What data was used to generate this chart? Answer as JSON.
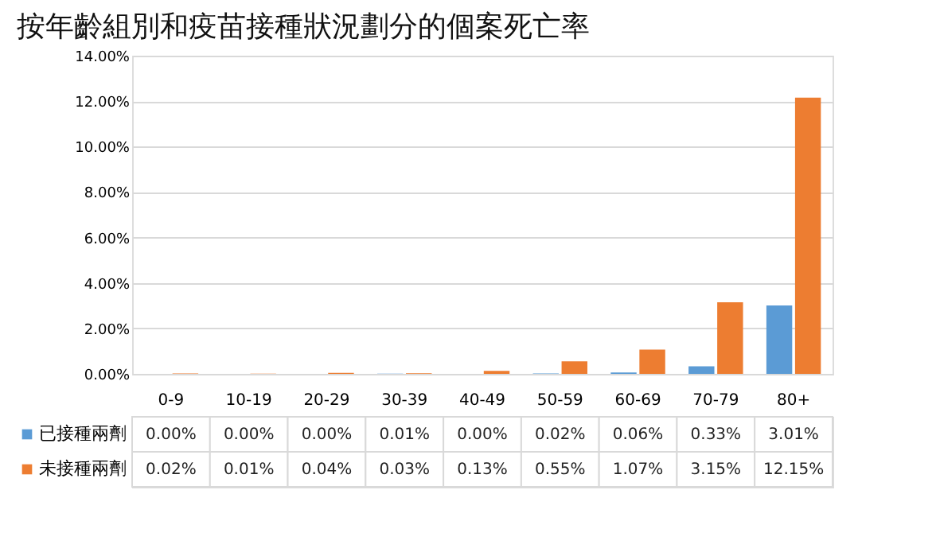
{
  "chart_data": {
    "type": "bar",
    "title": "按年齡組別和疫苗接種狀況劃分的個案死亡率",
    "categories": [
      "0-9",
      "10-19",
      "20-29",
      "30-39",
      "40-49",
      "50-59",
      "60-69",
      "70-79",
      "80+"
    ],
    "series": [
      {
        "name": "已接種兩劑",
        "color": "#5b9bd5",
        "values": [
          0.0,
          0.0,
          0.0,
          0.01,
          0.0,
          0.02,
          0.06,
          0.33,
          3.01
        ],
        "value_labels": [
          "0.00%",
          "0.00%",
          "0.00%",
          "0.01%",
          "0.00%",
          "0.02%",
          "0.06%",
          "0.33%",
          "3.01%"
        ]
      },
      {
        "name": "未接種兩劑",
        "color": "#ed7d31",
        "values": [
          0.02,
          0.01,
          0.04,
          0.03,
          0.13,
          0.55,
          1.07,
          3.15,
          12.15
        ],
        "value_labels": [
          "0.02%",
          "0.01%",
          "0.04%",
          "0.03%",
          "0.13%",
          "0.55%",
          "1.07%",
          "3.15%",
          "12.15%"
        ]
      }
    ],
    "ylim": [
      0,
      14
    ],
    "yticks": [
      {
        "value": 0,
        "label": "0.00%"
      },
      {
        "value": 2,
        "label": "2.00%"
      },
      {
        "value": 4,
        "label": "4.00%"
      },
      {
        "value": 6,
        "label": "6.00%"
      },
      {
        "value": 8,
        "label": "8.00%"
      },
      {
        "value": 10,
        "label": "10.00%"
      },
      {
        "value": 12,
        "label": "12.00%"
      },
      {
        "value": 14,
        "label": "14.00%"
      }
    ],
    "grid": "y",
    "legend": "bottom"
  }
}
